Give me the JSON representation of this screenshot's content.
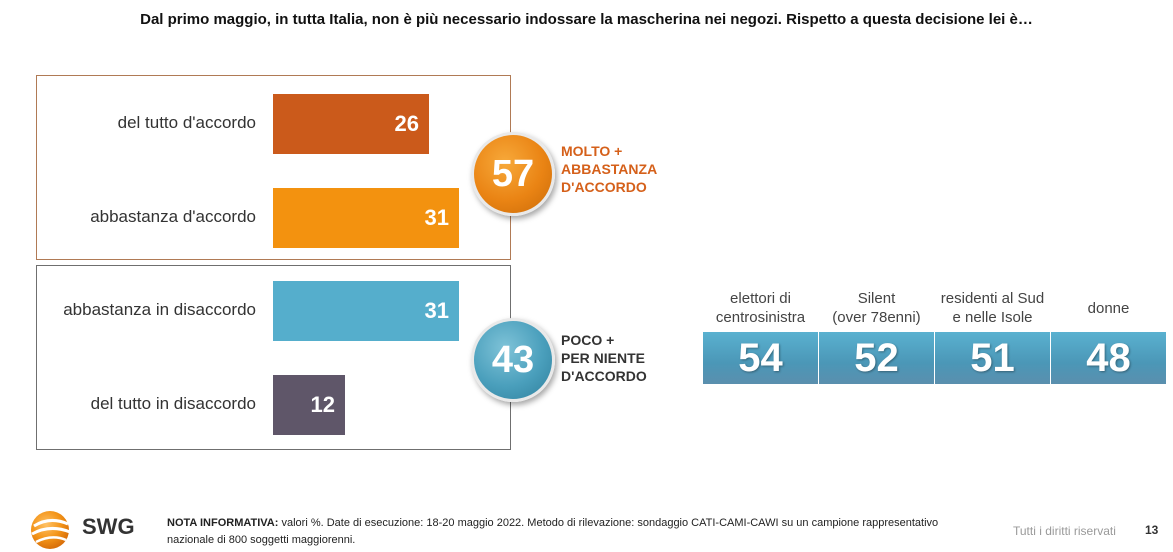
{
  "title": "Dal primo maggio, in tutta Italia, non è più necessario indossare la mascherina nei negozi. Rispetto a questa decisione lei è…",
  "chart_data": [
    {
      "type": "bar",
      "orientation": "horizontal",
      "categories": [
        "del tutto d'accordo",
        "abbastanza d'accordo",
        "abbastanza in disaccordo",
        "del tutto in disaccordo"
      ],
      "values": [
        26,
        31,
        31,
        12
      ],
      "colors": [
        "#cb5a1b",
        "#f3920f",
        "#55aecc",
        "#5f5669"
      ],
      "xlim": [
        0,
        100
      ],
      "groups": [
        {
          "total": 57,
          "label_lines": [
            "MOLTO +",
            "ABBASTANZA",
            "D'ACCORDO"
          ],
          "color": "#d5601a"
        },
        {
          "total": 43,
          "label_lines": [
            "POCO +",
            "PER NIENTE",
            "D'ACCORDO"
          ],
          "color": "#333333"
        }
      ]
    },
    {
      "type": "table",
      "segments": [
        {
          "label_lines": [
            "elettori di",
            "centrosinistra"
          ],
          "value": 54
        },
        {
          "label_lines": [
            "Silent",
            "(over 78enni)"
          ],
          "value": 52
        },
        {
          "label_lines": [
            "residenti al Sud",
            "e nelle Isole"
          ],
          "value": 51
        },
        {
          "label_lines": [
            "donne"
          ],
          "value": 48
        }
      ]
    }
  ],
  "footer": {
    "logo_text": "SWG",
    "note_label": "NOTA INFORMATIVA:",
    "note_text": " valori %. Date di esecuzione: 18-20 maggio 2022. Metodo di rilevazione: sondaggio CATI-CAMI-CAWI su un campione rappresentativo nazionale di 800 soggetti maggiorenni.",
    "rights": "Tutti i diritti riservati",
    "page_number": "13"
  }
}
